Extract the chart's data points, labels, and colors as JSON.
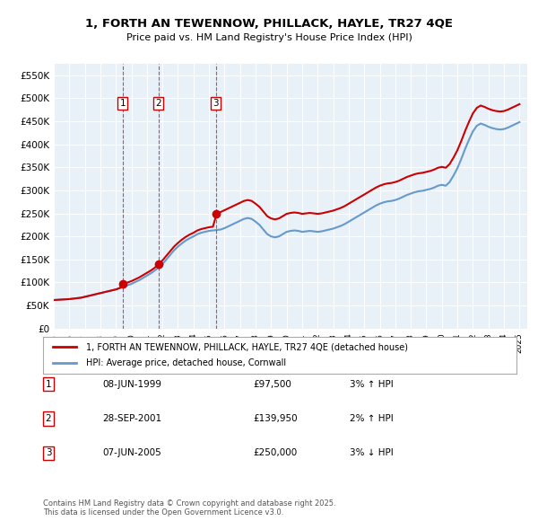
{
  "title": "1, FORTH AN TEWENNOW, PHILLACK, HAYLE, TR27 4QE",
  "subtitle": "Price paid vs. HM Land Registry's House Price Index (HPI)",
  "ylabel": "",
  "ylim": [
    0,
    575000
  ],
  "yticks": [
    0,
    50000,
    100000,
    150000,
    200000,
    250000,
    300000,
    350000,
    400000,
    450000,
    500000,
    550000
  ],
  "ytick_labels": [
    "£0",
    "£50K",
    "£100K",
    "£150K",
    "£200K",
    "£250K",
    "£300K",
    "£350K",
    "£400K",
    "£450K",
    "£500K",
    "£550K"
  ],
  "xlim_start": 1995.0,
  "xlim_end": 2025.5,
  "background_color": "#e8f0f8",
  "plot_bg_color": "#e8f0f8",
  "grid_color": "#ffffff",
  "hpi_color": "#6699cc",
  "price_color": "#cc0000",
  "sale_marker_color": "#cc0000",
  "legend_label_price": "1, FORTH AN TEWENNOW, PHILLACK, HAYLE, TR27 4QE (detached house)",
  "legend_label_hpi": "HPI: Average price, detached house, Cornwall",
  "transactions": [
    {
      "num": 1,
      "date_str": "08-JUN-1999",
      "year": 1999.44,
      "price": 97500,
      "pct": "3%",
      "dir": "↑"
    },
    {
      "num": 2,
      "date_str": "28-SEP-2001",
      "year": 2001.74,
      "price": 139950,
      "pct": "2%",
      "dir": "↑"
    },
    {
      "num": 3,
      "date_str": "07-JUN-2005",
      "year": 2005.44,
      "price": 250000,
      "pct": "3%",
      "dir": "↓"
    }
  ],
  "footer": "Contains HM Land Registry data © Crown copyright and database right 2025.\nThis data is licensed under the Open Government Licence v3.0.",
  "hpi_data_x": [
    1995.0,
    1995.25,
    1995.5,
    1995.75,
    1996.0,
    1996.25,
    1996.5,
    1996.75,
    1997.0,
    1997.25,
    1997.5,
    1997.75,
    1998.0,
    1998.25,
    1998.5,
    1998.75,
    1999.0,
    1999.25,
    1999.5,
    1999.75,
    2000.0,
    2000.25,
    2000.5,
    2000.75,
    2001.0,
    2001.25,
    2001.5,
    2001.75,
    2002.0,
    2002.25,
    2002.5,
    2002.75,
    2003.0,
    2003.25,
    2003.5,
    2003.75,
    2004.0,
    2004.25,
    2004.5,
    2004.75,
    2005.0,
    2005.25,
    2005.5,
    2005.75,
    2006.0,
    2006.25,
    2006.5,
    2006.75,
    2007.0,
    2007.25,
    2007.5,
    2007.75,
    2008.0,
    2008.25,
    2008.5,
    2008.75,
    2009.0,
    2009.25,
    2009.5,
    2009.75,
    2010.0,
    2010.25,
    2010.5,
    2010.75,
    2011.0,
    2011.25,
    2011.5,
    2011.75,
    2012.0,
    2012.25,
    2012.5,
    2012.75,
    2013.0,
    2013.25,
    2013.5,
    2013.75,
    2014.0,
    2014.25,
    2014.5,
    2014.75,
    2015.0,
    2015.25,
    2015.5,
    2015.75,
    2016.0,
    2016.25,
    2016.5,
    2016.75,
    2017.0,
    2017.25,
    2017.5,
    2017.75,
    2018.0,
    2018.25,
    2018.5,
    2018.75,
    2019.0,
    2019.25,
    2019.5,
    2019.75,
    2020.0,
    2020.25,
    2020.5,
    2020.75,
    2021.0,
    2021.25,
    2021.5,
    2021.75,
    2022.0,
    2022.25,
    2022.5,
    2022.75,
    2023.0,
    2023.25,
    2023.5,
    2023.75,
    2024.0,
    2024.25,
    2024.5,
    2024.75,
    2025.0
  ],
  "hpi_data_y": [
    62000,
    62500,
    63000,
    63500,
    64000,
    65000,
    66000,
    67000,
    69000,
    71000,
    73000,
    75000,
    77000,
    79000,
    81000,
    83000,
    85000,
    88000,
    91000,
    94000,
    97000,
    101000,
    105000,
    110000,
    115000,
    120000,
    126000,
    132000,
    140000,
    150000,
    160000,
    170000,
    178000,
    185000,
    191000,
    196000,
    200000,
    205000,
    208000,
    210000,
    212000,
    213000,
    214000,
    215000,
    218000,
    222000,
    226000,
    230000,
    234000,
    238000,
    240000,
    238000,
    232000,
    225000,
    215000,
    205000,
    200000,
    198000,
    200000,
    205000,
    210000,
    212000,
    213000,
    212000,
    210000,
    211000,
    212000,
    211000,
    210000,
    211000,
    213000,
    215000,
    217000,
    220000,
    223000,
    227000,
    232000,
    237000,
    242000,
    247000,
    252000,
    257000,
    262000,
    267000,
    271000,
    274000,
    276000,
    277000,
    279000,
    282000,
    286000,
    290000,
    293000,
    296000,
    298000,
    299000,
    301000,
    303000,
    306000,
    310000,
    312000,
    310000,
    318000,
    332000,
    348000,
    368000,
    390000,
    410000,
    428000,
    440000,
    445000,
    442000,
    438000,
    435000,
    433000,
    432000,
    433000,
    436000,
    440000,
    444000,
    448000
  ],
  "price_data_x": [
    1995.0,
    1995.25,
    1995.5,
    1995.75,
    1996.0,
    1996.25,
    1996.5,
    1996.75,
    1997.0,
    1997.25,
    1997.5,
    1997.75,
    1998.0,
    1998.25,
    1998.5,
    1998.75,
    1999.0,
    1999.25,
    1999.5,
    1999.75,
    2000.0,
    2000.25,
    2000.5,
    2000.75,
    2001.0,
    2001.25,
    2001.5,
    2001.75,
    2002.0,
    2002.25,
    2002.5,
    2002.75,
    2003.0,
    2003.25,
    2003.5,
    2003.75,
    2004.0,
    2004.25,
    2004.5,
    2004.75,
    2005.0,
    2005.25,
    2005.5,
    2005.75,
    2006.0,
    2006.25,
    2006.5,
    2006.75,
    2007.0,
    2007.25,
    2007.5,
    2007.75,
    2008.0,
    2008.25,
    2008.5,
    2008.75,
    2009.0,
    2009.25,
    2009.5,
    2009.75,
    2010.0,
    2010.25,
    2010.5,
    2010.75,
    2011.0,
    2011.25,
    2011.5,
    2011.75,
    2012.0,
    2012.25,
    2012.5,
    2012.75,
    2013.0,
    2013.25,
    2013.5,
    2013.75,
    2014.0,
    2014.25,
    2014.5,
    2014.75,
    2015.0,
    2015.25,
    2015.5,
    2015.75,
    2016.0,
    2016.25,
    2016.5,
    2016.75,
    2017.0,
    2017.25,
    2017.5,
    2017.75,
    2018.0,
    2018.25,
    2018.5,
    2018.75,
    2019.0,
    2019.25,
    2019.5,
    2019.75,
    2020.0,
    2020.25,
    2020.5,
    2020.75,
    2021.0,
    2021.25,
    2021.5,
    2021.75,
    2022.0,
    2022.25,
    2022.5,
    2022.75,
    2023.0,
    2023.25,
    2023.5,
    2023.75,
    2024.0,
    2024.25,
    2024.5,
    2024.75,
    2025.0
  ],
  "price_data_y": [
    62000,
    62500,
    63000,
    63500,
    64000,
    65000,
    66000,
    67000,
    69000,
    71000,
    73000,
    75000,
    77000,
    79000,
    81000,
    83000,
    85000,
    88000,
    97500,
    100000,
    103000,
    107000,
    111000,
    116000,
    121000,
    126000,
    132000,
    139950,
    148000,
    158000,
    168000,
    178000,
    186000,
    193000,
    199000,
    204000,
    208000,
    213000,
    216000,
    218000,
    220000,
    221000,
    250000,
    253000,
    257000,
    261000,
    265000,
    269000,
    273000,
    277000,
    279000,
    277000,
    271000,
    264000,
    254000,
    244000,
    239000,
    237000,
    239000,
    244000,
    249000,
    251000,
    252000,
    251000,
    249000,
    250000,
    251000,
    250000,
    249000,
    250000,
    252000,
    254000,
    256000,
    259000,
    262000,
    266000,
    271000,
    276000,
    281000,
    286000,
    291000,
    296000,
    301000,
    306000,
    310000,
    313000,
    315000,
    316000,
    318000,
    321000,
    325000,
    329000,
    332000,
    335000,
    337000,
    338000,
    340000,
    342000,
    345000,
    349000,
    351000,
    349000,
    357000,
    371000,
    387000,
    407000,
    429000,
    449000,
    467000,
    479000,
    484000,
    481000,
    477000,
    474000,
    472000,
    471000,
    472000,
    475000,
    479000,
    483000,
    487000
  ]
}
